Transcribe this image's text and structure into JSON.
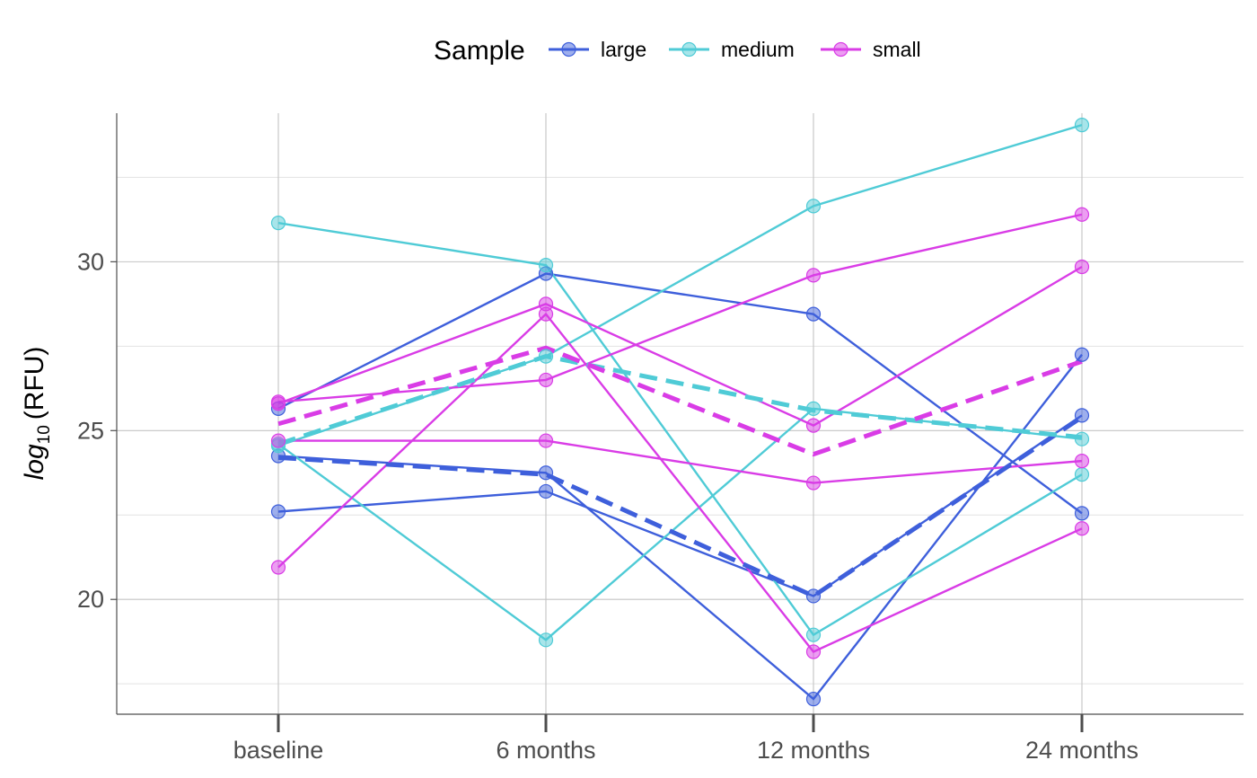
{
  "chart_data": {
    "type": "line",
    "title": "",
    "xlabel": "",
    "ylabel": {
      "base": "log",
      "subscript": "10",
      "rest": "(RFU)"
    },
    "categories": [
      "baseline",
      "6 months",
      "12 months",
      "24 months"
    ],
    "y_ticks": [
      20,
      25,
      30
    ],
    "ylim": [
      16.6,
      34.4
    ],
    "grid": true,
    "legend": {
      "title": "Sample",
      "placement": "top",
      "entries": [
        "large",
        "medium",
        "small"
      ]
    },
    "colors": {
      "large": "#3e5fdb",
      "medium": "#4fcbd6",
      "small": "#d93ce6"
    },
    "series": [
      {
        "group": "large",
        "values": [
          25.65,
          29.65,
          28.45,
          22.55
        ]
      },
      {
        "group": "large",
        "values": [
          24.25,
          23.75,
          17.05,
          27.25
        ]
      },
      {
        "group": "large",
        "values": [
          22.6,
          23.2,
          20.1,
          25.45
        ]
      },
      {
        "group": "medium",
        "values": [
          31.15,
          29.9,
          18.95,
          23.7
        ]
      },
      {
        "group": "medium",
        "values": [
          24.55,
          27.2,
          31.65,
          34.05
        ]
      },
      {
        "group": "medium",
        "values": [
          24.6,
          18.8,
          25.65,
          24.75
        ]
      },
      {
        "group": "small",
        "values": [
          25.85,
          26.5,
          29.6,
          31.4
        ]
      },
      {
        "group": "small",
        "values": [
          24.7,
          24.7,
          23.45,
          24.1
        ]
      },
      {
        "group": "small",
        "values": [
          25.8,
          28.75,
          25.15,
          29.85
        ]
      },
      {
        "group": "small",
        "values": [
          20.95,
          28.45,
          18.45,
          22.1
        ]
      }
    ],
    "means": [
      {
        "group": "large",
        "values": [
          24.2,
          23.7,
          20.1,
          25.4
        ]
      },
      {
        "group": "medium",
        "values": [
          24.6,
          27.2,
          25.6,
          24.8
        ]
      },
      {
        "group": "small",
        "values": [
          25.2,
          27.45,
          24.3,
          27.05
        ]
      }
    ]
  }
}
